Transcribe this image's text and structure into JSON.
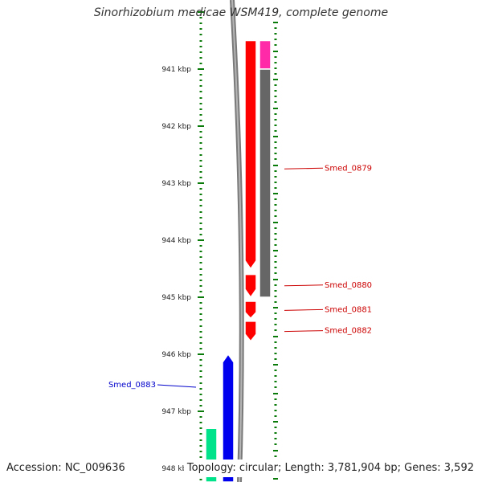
{
  "title": "Sinorhizobium medicae WSM419, complete genome",
  "ruler": {
    "unit": "kbp",
    "ticks": [
      941,
      942,
      943,
      944,
      945,
      946,
      947,
      948
    ],
    "tick_labels": [
      "941 kbp",
      "942 kbp",
      "943 kbp",
      "944 kbp",
      "945 kbp",
      "946 kbp",
      "947 kbp",
      "948 kbp"
    ],
    "tick_color": "#0a7a0a"
  },
  "features": [
    {
      "track": "forward-cds",
      "start_kbp": 940.5,
      "end_kbp": 944.5,
      "color": "#ff0000",
      "label": ""
    },
    {
      "track": "forward-cds",
      "start_kbp": 944.6,
      "end_kbp": 945.0,
      "color": "#ff0000",
      "label": ""
    },
    {
      "track": "forward-cds",
      "start_kbp": 945.07,
      "end_kbp": 945.37,
      "color": "#ff0000",
      "label": ""
    },
    {
      "track": "forward-cds",
      "start_kbp": 945.42,
      "end_kbp": 945.77,
      "color": "#ff0000",
      "label": ""
    },
    {
      "track": "gene",
      "start_kbp": 940.5,
      "end_kbp": 941.0,
      "color": "#ff2aa8",
      "label": ""
    },
    {
      "track": "gene",
      "start_kbp": 941.0,
      "end_kbp": 945.0,
      "color": "#666666",
      "label": ""
    },
    {
      "track": "reverse-cds",
      "start_kbp": 946.0,
      "end_kbp": 948.5,
      "color": "#0000ee",
      "label": ""
    },
    {
      "track": "rna",
      "start_kbp": 947.3,
      "end_kbp": 948.5,
      "color": "#00e38a",
      "label": ""
    }
  ],
  "labels": [
    {
      "text": "Smed_0879",
      "kbp": 942.75,
      "side": "right",
      "color": "#cc0000"
    },
    {
      "text": "Smed_0880",
      "kbp": 944.8,
      "side": "right",
      "color": "#cc0000"
    },
    {
      "text": "Smed_0881",
      "kbp": 945.23,
      "side": "right",
      "color": "#cc0000"
    },
    {
      "text": "Smed_0882",
      "kbp": 945.6,
      "side": "right",
      "color": "#cc0000"
    },
    {
      "text": "Smed_0883",
      "kbp": 946.55,
      "side": "left",
      "color": "#0000cc"
    }
  ],
  "footer": {
    "accession": "Accession: NC_009636",
    "summary": "Topology: circular; Length: 3,781,904 bp; Genes: 3,592"
  }
}
